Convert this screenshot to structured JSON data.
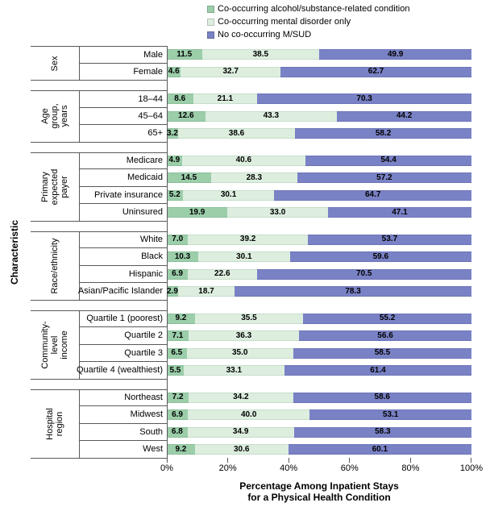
{
  "legend": {
    "items": [
      {
        "label": "Co-occurring alcohol/substance-related condition",
        "color": "#9CCEAA"
      },
      {
        "label": "Co-occurring mental disorder only",
        "color": "#DDEEDF"
      },
      {
        "label": "No co-occurring M/SUD",
        "color": "#7A82C6"
      }
    ]
  },
  "y_axis_title": "Characteristic",
  "x_axis": {
    "ticks": [
      "0%",
      "20%",
      "40%",
      "60%",
      "80%",
      "100%"
    ],
    "title_line1": "Percentage Among Inpatient Stays",
    "title_line2": "for a Physical Health Condition"
  },
  "chart_data": {
    "type": "bar",
    "orientation": "horizontal",
    "stacked": true,
    "xlim": [
      0,
      100
    ],
    "legend_position": "top",
    "grid": false,
    "series": [
      {
        "name": "Co-occurring alcohol/substance-related condition",
        "color": "#9CCEAA",
        "border": "#8ABF99"
      },
      {
        "name": "Co-occurring mental disorder only",
        "color": "#DDEEDF",
        "border": "#C6DECB"
      },
      {
        "name": "No co-occurring M/SUD",
        "color": "#7A82C6",
        "border": "#6C74B8"
      }
    ],
    "groups": [
      {
        "label": "Sex",
        "label_lines": [
          "Sex"
        ],
        "rows": [
          {
            "category": "Male",
            "values": [
              11.5,
              38.5,
              49.9
            ],
            "labels": [
              "11.5",
              "38.5",
              "49.9"
            ]
          },
          {
            "category": "Female",
            "values": [
              4.6,
              32.7,
              62.7
            ],
            "labels": [
              "4.6",
              "32.7",
              "62.7"
            ]
          }
        ]
      },
      {
        "label": "Age group, years",
        "label_lines": [
          "Age group,",
          "years"
        ],
        "rows": [
          {
            "category": "18–44",
            "values": [
              8.6,
              21.1,
              70.3
            ],
            "labels": [
              "8.6",
              "21.1",
              "70.3"
            ]
          },
          {
            "category": "45–64",
            "values": [
              12.6,
              43.3,
              44.2
            ],
            "labels": [
              "12.6",
              "43.3",
              "44.2"
            ]
          },
          {
            "category": "65+",
            "values": [
              3.2,
              38.6,
              58.2
            ],
            "labels": [
              "3.2",
              "38.6",
              "58.2"
            ]
          }
        ]
      },
      {
        "label": "Primary expected payer",
        "label_lines": [
          "Primary",
          "expected payer"
        ],
        "rows": [
          {
            "category": "Medicare",
            "values": [
              4.9,
              40.6,
              54.4
            ],
            "labels": [
              "4.9",
              "40.6",
              "54.4"
            ]
          },
          {
            "category": "Medicaid",
            "values": [
              14.5,
              28.3,
              57.2
            ],
            "labels": [
              "14.5",
              "28.3",
              "57.2"
            ]
          },
          {
            "category": "Private insurance",
            "values": [
              5.2,
              30.1,
              64.7
            ],
            "labels": [
              "5.2",
              "30.1",
              "64.7"
            ]
          },
          {
            "category": "Uninsured",
            "values": [
              19.9,
              33.0,
              47.1
            ],
            "labels": [
              "19.9",
              "33.0",
              "47.1"
            ]
          }
        ]
      },
      {
        "label": "Race/ethnicity",
        "label_lines": [
          "Race/ethnicity"
        ],
        "rows": [
          {
            "category": "White",
            "values": [
              7.0,
              39.2,
              53.7
            ],
            "labels": [
              "7.0",
              "39.2",
              "53.7"
            ]
          },
          {
            "category": "Black",
            "values": [
              10.3,
              30.1,
              59.6
            ],
            "labels": [
              "10.3",
              "30.1",
              "59.6"
            ]
          },
          {
            "category": "Hispanic",
            "values": [
              6.9,
              22.6,
              70.5
            ],
            "labels": [
              "6.9",
              "22.6",
              "70.5"
            ]
          },
          {
            "category": "Asian/Pacific Islander",
            "values": [
              2.9,
              18.7,
              78.3
            ],
            "labels": [
              "2.9",
              "18.7",
              "78.3"
            ]
          }
        ]
      },
      {
        "label": "Community-level income",
        "label_lines": [
          "Community-",
          "level income"
        ],
        "rows": [
          {
            "category": "Quartile 1 (poorest)",
            "values": [
              9.2,
              35.5,
              55.2
            ],
            "labels": [
              "9.2",
              "35.5",
              "55.2"
            ]
          },
          {
            "category": "Quartile 2",
            "values": [
              7.1,
              36.3,
              56.6
            ],
            "labels": [
              "7.1",
              "36.3",
              "56.6"
            ]
          },
          {
            "category": "Quartile 3",
            "values": [
              6.5,
              35.0,
              58.5
            ],
            "labels": [
              "6.5",
              "35.0",
              "58.5"
            ]
          },
          {
            "category": "Quartile 4 (wealthiest)",
            "values": [
              5.5,
              33.1,
              61.4
            ],
            "labels": [
              "5.5",
              "33.1",
              "61.4"
            ]
          }
        ]
      },
      {
        "label": "Hospital region",
        "label_lines": [
          "Hospital",
          "region"
        ],
        "rows": [
          {
            "category": "Northeast",
            "values": [
              7.2,
              34.2,
              58.6
            ],
            "labels": [
              "7.2",
              "34.2",
              "58.6"
            ]
          },
          {
            "category": "Midwest",
            "values": [
              6.9,
              40.0,
              53.1
            ],
            "labels": [
              "6.9",
              "40.0",
              "53.1"
            ]
          },
          {
            "category": "South",
            "values": [
              6.8,
              34.9,
              58.3
            ],
            "labels": [
              "6.8",
              "34.9",
              "58.3"
            ]
          },
          {
            "category": "West",
            "values": [
              9.2,
              30.6,
              60.1
            ],
            "labels": [
              "9.2",
              "30.6",
              "60.1"
            ]
          }
        ]
      }
    ]
  }
}
